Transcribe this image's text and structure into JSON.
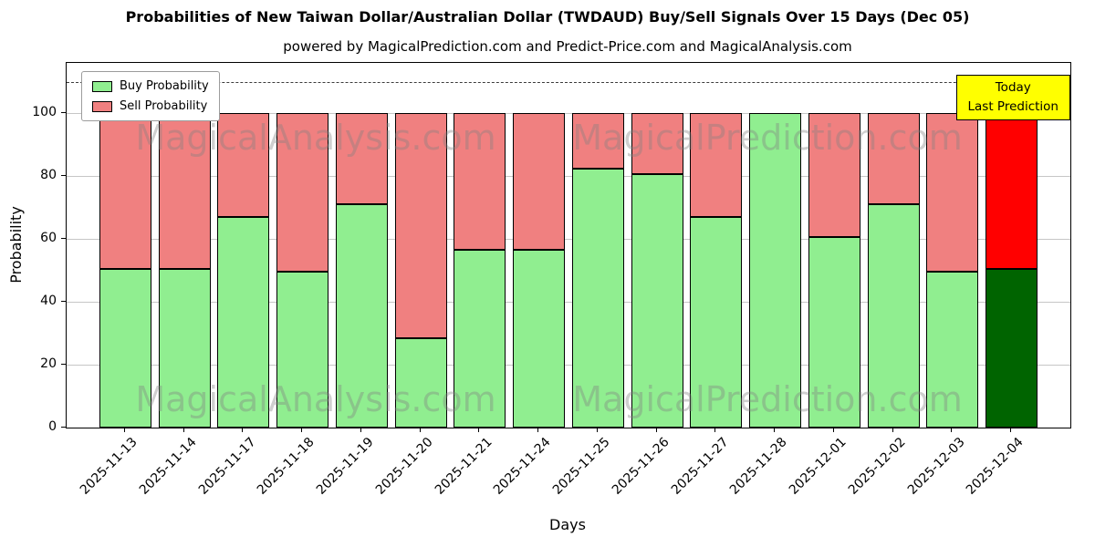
{
  "title": "Probabilities of New Taiwan Dollar/Australian Dollar (TWDAUD) Buy/Sell Signals Over 15 Days (Dec 05)",
  "subtitle": "powered by MagicalPrediction.com and Predict-Price.com and MagicalAnalysis.com",
  "legend": {
    "buy_label": "Buy Probability",
    "sell_label": "Sell Probability"
  },
  "annotation": {
    "line1": "Today",
    "line2": "Last Prediction",
    "bg_color": "#ffff00"
  },
  "axes": {
    "xlabel": "Days",
    "ylabel": "Probability"
  },
  "watermarks": [
    "MagicalAnalysis.com",
    "MagicalPrediction.com"
  ],
  "chart_data": {
    "type": "bar",
    "stacked": true,
    "title": "Probabilities of New Taiwan Dollar/Australian Dollar (TWDAUD) Buy/Sell Signals Over 15 Days (Dec 05)",
    "xlabel": "Days",
    "ylabel": "Probability",
    "ylim": [
      0,
      116
    ],
    "yticks": [
      0,
      20,
      40,
      60,
      80,
      100
    ],
    "grid": true,
    "legend_position": "upper left",
    "dashed_line_y": 110,
    "categories": [
      "2025-11-13",
      "2025-11-14",
      "2025-11-17",
      "2025-11-18",
      "2025-11-19",
      "2025-11-20",
      "2025-11-21",
      "2025-11-24",
      "2025-11-25",
      "2025-11-26",
      "2025-11-27",
      "2025-11-28",
      "2025-12-01",
      "2025-12-02",
      "2025-12-03",
      "2025-12-04"
    ],
    "series": [
      {
        "name": "Buy Probability",
        "color": "#90ee90",
        "values": [
          50.5,
          50.5,
          67,
          49.5,
          71,
          28.5,
          56.5,
          56.5,
          82.5,
          80.5,
          67,
          100,
          60.5,
          71,
          49.5,
          50.5
        ]
      },
      {
        "name": "Sell Probability",
        "color": "#f08080",
        "values": [
          49.5,
          49.5,
          33,
          50.5,
          29,
          71.5,
          43.5,
          43.5,
          17.5,
          19.5,
          33,
          0,
          39.5,
          29,
          50.5,
          49.5
        ]
      }
    ],
    "today_colors": {
      "buy": "#006400",
      "sell": "#ff0000"
    }
  }
}
